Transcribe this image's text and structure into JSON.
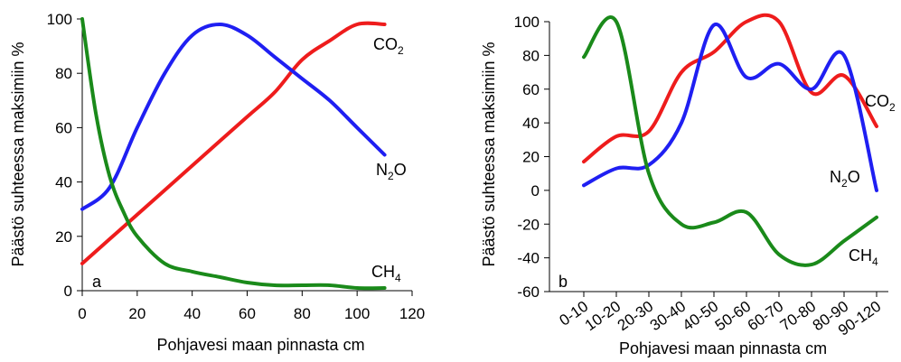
{
  "chart_data": [
    {
      "type": "line",
      "panel_label": "a",
      "xlabel": "Pohjavesi maan pinnasta cm",
      "ylabel": "Päästö suhteessa maksimiin %",
      "xlim": [
        0,
        120
      ],
      "ylim": [
        0,
        100
      ],
      "xticks": [
        "0",
        "20",
        "40",
        "60",
        "80",
        "100",
        "120"
      ],
      "yticks": [
        "0",
        "20",
        "40",
        "60",
        "80",
        "100"
      ],
      "grid": false,
      "series": [
        {
          "name": "CO2",
          "label_main": "CO",
          "label_sub": "2",
          "color": "#ee1c1c",
          "x": [
            0,
            10,
            20,
            30,
            40,
            50,
            60,
            70,
            80,
            90,
            100,
            110
          ],
          "y": [
            10,
            19,
            28,
            37,
            46,
            55,
            64,
            73,
            85,
            92,
            98,
            98
          ]
        },
        {
          "name": "N2O",
          "label_main": "N",
          "label_sub": "2",
          "label_tail": "O",
          "color": "#1f1ff2",
          "x": [
            0,
            10,
            20,
            30,
            40,
            50,
            60,
            70,
            80,
            90,
            100,
            110
          ],
          "y": [
            30,
            38,
            60,
            80,
            94,
            98,
            94,
            86,
            78,
            70,
            60,
            50
          ]
        },
        {
          "name": "CH4",
          "label_main": "CH",
          "label_sub": "4",
          "color": "#1a8a1a",
          "x": [
            0,
            5,
            10,
            15,
            20,
            30,
            40,
            50,
            60,
            70,
            80,
            90,
            100,
            110
          ],
          "y": [
            100,
            65,
            42,
            29,
            20,
            10,
            7,
            5,
            3,
            2,
            2,
            2,
            1,
            1
          ]
        }
      ]
    },
    {
      "type": "line",
      "panel_label": "b",
      "xlabel": "Pohjavesi maan pinnasta cm",
      "ylabel": "Päästö suhteessa maksimiin %",
      "categories": [
        "0-10",
        "10-20",
        "20-30",
        "30-40",
        "40-50",
        "50-60",
        "60-70",
        "70-80",
        "80-90",
        "90-120"
      ],
      "ylim": [
        -60,
        100
      ],
      "yticks": [
        "-60",
        "-40",
        "-20",
        "0",
        "20",
        "40",
        "60",
        "80",
        "100"
      ],
      "grid": false,
      "series": [
        {
          "name": "CO2",
          "label_main": "CO",
          "label_sub": "2",
          "color": "#ee1c1c",
          "values": [
            17,
            32,
            35,
            70,
            82,
            100,
            100,
            58,
            68,
            38
          ]
        },
        {
          "name": "N2O",
          "label_main": "N",
          "label_sub": "2",
          "label_tail": "O",
          "color": "#1f1ff2",
          "values": [
            3,
            13,
            15,
            40,
            98,
            67,
            75,
            60,
            80,
            0
          ]
        },
        {
          "name": "CH4",
          "label_main": "CH",
          "label_sub": "4",
          "color": "#1a8a1a",
          "values": [
            79,
            100,
            10,
            -20,
            -19,
            -13,
            -38,
            -44,
            -30,
            -16
          ]
        }
      ]
    }
  ]
}
